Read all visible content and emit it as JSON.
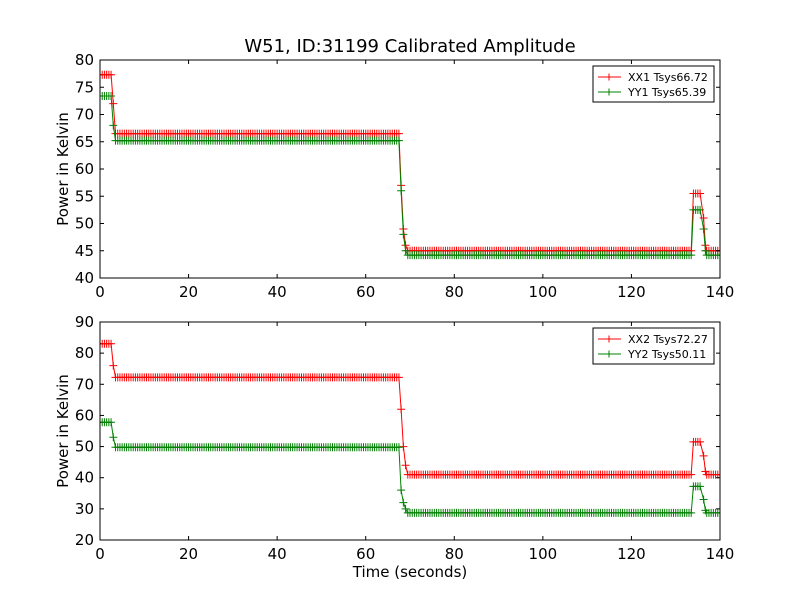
{
  "figure": {
    "title": "W51, ID:31199 Calibrated Amplitude",
    "xlabel": "Time (seconds)"
  },
  "chart_data": [
    {
      "type": "line",
      "ylabel": "Power in Kelvin",
      "xlabel": "",
      "xlim": [
        0,
        140
      ],
      "ylim": [
        40,
        80
      ],
      "x_ticks": [
        0,
        20,
        40,
        60,
        80,
        100,
        120,
        140
      ],
      "y_ticks": [
        40,
        45,
        50,
        55,
        60,
        65,
        70,
        75,
        80
      ],
      "grid": false,
      "legend_position": "top-right",
      "series": [
        {
          "name": "XX1 Tsys66.72",
          "color": "#ff0000",
          "segments": [
            {
              "x_start": 0,
              "x_end": 2.5,
              "value": 77.3
            },
            {
              "x_start": 3.5,
              "x_end": 67.5,
              "value": 66.5
            },
            {
              "x_start": 69.5,
              "x_end": 133.5,
              "value": 45.0
            },
            {
              "x_start": 134,
              "x_end": 135.8,
              "value": 55.5
            },
            {
              "x_start": 137,
              "x_end": 140,
              "value": 45.0
            }
          ],
          "transition_points": [
            [
              3,
              72.0
            ],
            [
              68,
              57.0
            ],
            [
              68.5,
              49.0
            ],
            [
              69,
              46.0
            ],
            [
              136.3,
              51.0
            ],
            [
              136.7,
              46.0
            ]
          ]
        },
        {
          "name": "YY1 Tsys65.39",
          "color": "#008000",
          "segments": [
            {
              "x_start": 0,
              "x_end": 2.5,
              "value": 73.4
            },
            {
              "x_start": 3.5,
              "x_end": 67.5,
              "value": 65.2
            },
            {
              "x_start": 69.5,
              "x_end": 133.5,
              "value": 44.2
            },
            {
              "x_start": 134,
              "x_end": 135.8,
              "value": 52.5
            },
            {
              "x_start": 137,
              "x_end": 140,
              "value": 44.2
            }
          ],
          "transition_points": [
            [
              3,
              68.0
            ],
            [
              68,
              56.0
            ],
            [
              68.5,
              48.0
            ],
            [
              69,
              45.0
            ],
            [
              136.3,
              49.0
            ],
            [
              136.7,
              45.0
            ]
          ]
        }
      ]
    },
    {
      "type": "line",
      "ylabel": "Power in Kelvin",
      "xlabel": "Time (seconds)",
      "xlim": [
        0,
        140
      ],
      "ylim": [
        20,
        90
      ],
      "x_ticks": [
        0,
        20,
        40,
        60,
        80,
        100,
        120,
        140
      ],
      "y_ticks": [
        20,
        30,
        40,
        50,
        60,
        70,
        80,
        90
      ],
      "grid": false,
      "legend_position": "top-right",
      "series": [
        {
          "name": "XX2 Tsys72.27",
          "color": "#ff0000",
          "segments": [
            {
              "x_start": 0,
              "x_end": 2.5,
              "value": 83.0
            },
            {
              "x_start": 3.5,
              "x_end": 67.5,
              "value": 72.2
            },
            {
              "x_start": 69.5,
              "x_end": 133.5,
              "value": 41.0
            },
            {
              "x_start": 134,
              "x_end": 135.8,
              "value": 51.5
            },
            {
              "x_start": 137,
              "x_end": 140,
              "value": 41.0
            }
          ],
          "transition_points": [
            [
              3,
              76.0
            ],
            [
              68,
              62.0
            ],
            [
              68.5,
              50.0
            ],
            [
              69,
              44.0
            ],
            [
              136.3,
              47.0
            ],
            [
              136.7,
              42.0
            ]
          ]
        },
        {
          "name": "YY2 Tsys50.11",
          "color": "#008000",
          "segments": [
            {
              "x_start": 0,
              "x_end": 2.5,
              "value": 57.8
            },
            {
              "x_start": 3.5,
              "x_end": 67.5,
              "value": 49.8
            },
            {
              "x_start": 69.5,
              "x_end": 133.5,
              "value": 28.7
            },
            {
              "x_start": 134,
              "x_end": 135.8,
              "value": 37.2
            },
            {
              "x_start": 137,
              "x_end": 140,
              "value": 28.7
            }
          ],
          "transition_points": [
            [
              3,
              53.0
            ],
            [
              68,
              36.0
            ],
            [
              68.5,
              32.0
            ],
            [
              69,
              30.0
            ],
            [
              136.3,
              33.0
            ],
            [
              136.7,
              29.5
            ]
          ]
        }
      ]
    }
  ]
}
